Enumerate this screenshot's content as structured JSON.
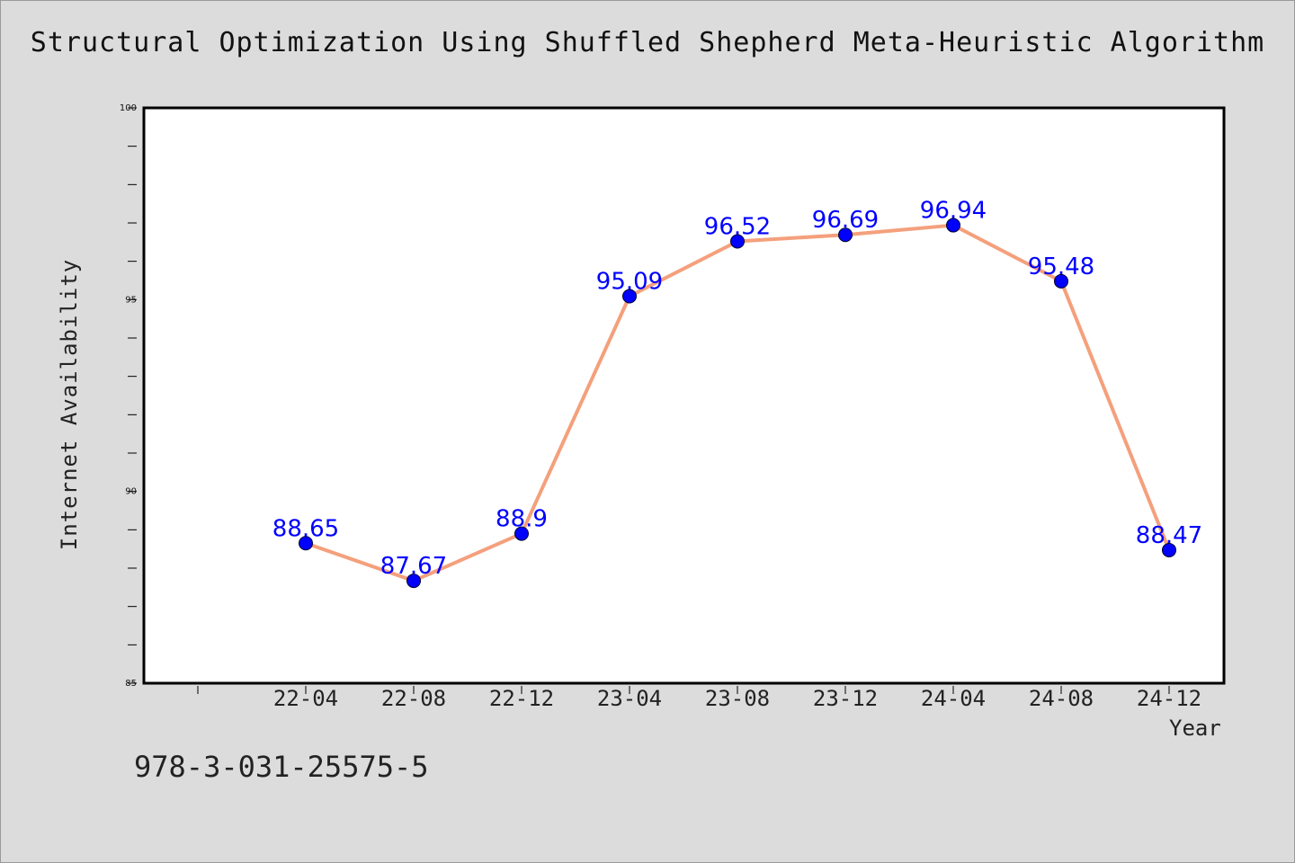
{
  "title": "Structural Optimization Using Shuffled Shepherd Meta-Heuristic Algorithm",
  "footer_text": "978-3-031-25575-5",
  "colors": {
    "background": "#dcdcdc",
    "plot_background": "#ffffff",
    "line": "#f4a07c",
    "marker": "#0000ff",
    "data_label": "#0000ff"
  },
  "chart_data": {
    "type": "line",
    "xlabel": "Year",
    "ylabel": "Internet Availability",
    "ylim": [
      85,
      100
    ],
    "yticks": [
      85,
      90,
      95,
      100
    ],
    "grid": false,
    "legend": "none",
    "categories": [
      "22-04",
      "22-08",
      "22-12",
      "23-04",
      "23-08",
      "23-12",
      "24-04",
      "24-08",
      "24-12"
    ],
    "series": [
      {
        "values": [
          88.65,
          87.67,
          88.9,
          95.09,
          96.52,
          96.69,
          96.94,
          95.48,
          88.47
        ]
      }
    ]
  }
}
